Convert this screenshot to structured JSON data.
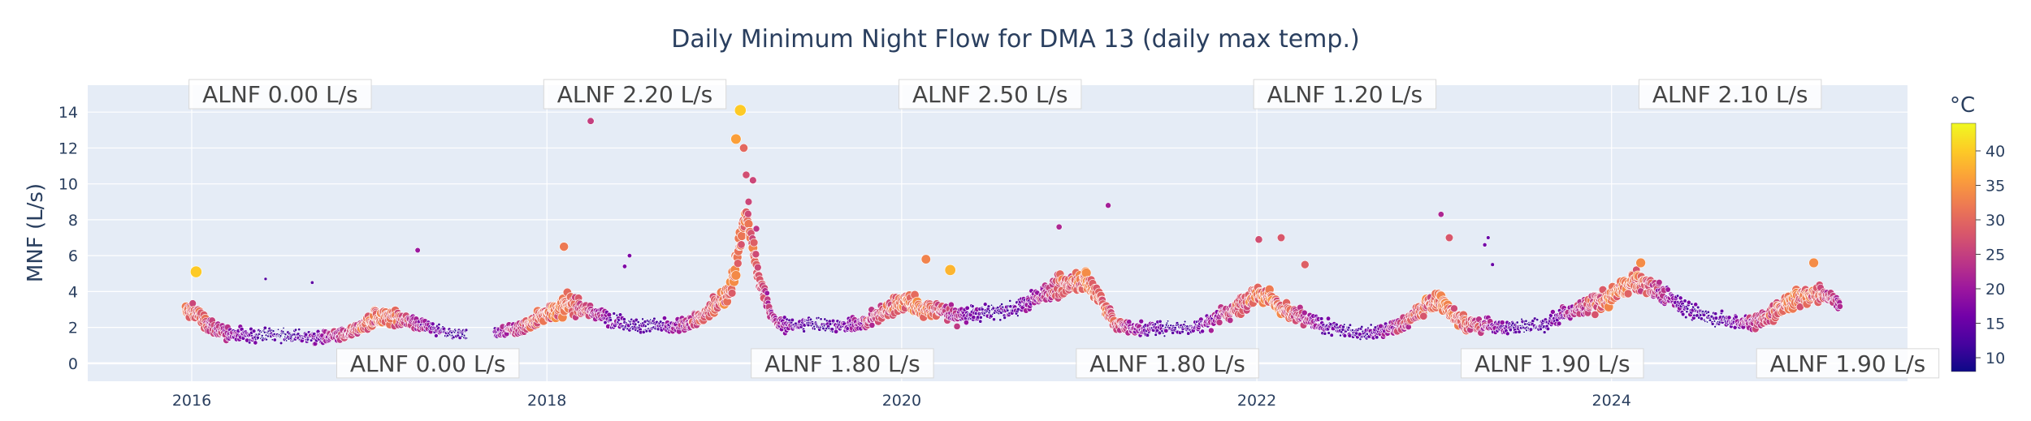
{
  "chart_data": {
    "type": "scatter",
    "title": "Daily Minimum Night Flow for DMA 13 (daily max temp.)",
    "xlabel": "",
    "ylabel": "MNF (L/s)",
    "xlim": [
      "2015-06-01",
      "2025-09-01"
    ],
    "ylim": [
      -1,
      15.5
    ],
    "x_ticks": [
      "2016",
      "2018",
      "2020",
      "2022",
      "2024"
    ],
    "y_ticks": [
      0,
      2,
      4,
      6,
      8,
      10,
      12,
      14
    ],
    "grid": true,
    "colorbar": {
      "title": "°C",
      "range": [
        8,
        44
      ],
      "ticks": [
        10,
        15,
        20,
        25,
        30,
        35,
        40
      ],
      "colorscale": [
        "#0d0887",
        "#46039f",
        "#7201a8",
        "#9c179e",
        "#bd3786",
        "#d8576b",
        "#ed7953",
        "#fb9f3a",
        "#fdca26",
        "#f0f921"
      ]
    },
    "marker_size": "scales with daily max temp.",
    "series": [
      {
        "x": [
          "2015-12-20",
          "2016-01-15",
          "2016-02-15",
          "2016-03-15",
          "2016-04-15",
          "2016-05-15",
          "2016-06-15",
          "2016-07-15",
          "2016-08-15",
          "2016-09-15",
          "2016-10-15",
          "2016-11-15",
          "2016-12-15",
          "2017-01-15",
          "2017-02-15",
          "2017-03-15",
          "2017-04-15",
          "2017-05-15",
          "2017-06-15",
          "2017-07-15",
          "2017-08-15",
          "2017-09-20",
          "2017-10-15",
          "2017-11-15",
          "2017-12-15",
          "2018-01-15",
          "2018-02-15",
          "2018-03-15",
          "2018-04-15",
          "2018-05-15",
          "2018-06-15",
          "2018-07-15",
          "2018-08-15",
          "2018-09-15",
          "2018-10-15",
          "2018-11-15",
          "2018-12-15",
          "2019-01-15",
          "2019-02-15",
          "2019-03-15",
          "2019-04-15",
          "2019-05-15",
          "2019-06-15",
          "2019-07-15",
          "2019-08-15",
          "2019-09-15",
          "2019-10-15",
          "2019-11-15",
          "2019-12-15",
          "2020-01-15",
          "2020-02-15",
          "2020-03-15",
          "2020-04-15",
          "2020-05-15",
          "2020-06-15",
          "2020-07-15",
          "2020-08-15",
          "2020-09-15",
          "2020-10-15",
          "2020-11-15",
          "2020-12-15",
          "2021-01-15",
          "2021-02-15",
          "2021-03-15",
          "2021-04-15",
          "2021-05-15",
          "2021-06-15",
          "2021-07-15",
          "2021-08-15",
          "2021-09-15",
          "2021-10-15",
          "2021-11-15",
          "2021-12-15",
          "2022-01-15",
          "2022-02-15",
          "2022-03-15",
          "2022-04-15",
          "2022-05-15",
          "2022-06-15",
          "2022-07-15",
          "2022-08-15",
          "2022-09-15",
          "2022-10-15",
          "2022-11-15",
          "2022-12-15",
          "2023-01-15",
          "2023-02-15",
          "2023-03-15",
          "2023-04-15",
          "2023-05-15",
          "2023-06-15",
          "2023-07-15",
          "2023-08-15",
          "2023-09-15",
          "2023-10-15",
          "2023-11-15",
          "2023-12-15",
          "2024-01-15",
          "2024-02-15",
          "2024-03-15",
          "2024-04-15",
          "2024-05-15",
          "2024-06-15",
          "2024-07-15",
          "2024-08-15",
          "2024-09-15",
          "2024-10-15",
          "2024-11-15",
          "2024-12-15",
          "2025-01-15",
          "2025-02-15",
          "2025-03-15",
          "2025-04-15"
        ],
        "y": [
          3.0,
          2.7,
          1.9,
          1.7,
          1.6,
          1.5,
          1.6,
          1.5,
          1.5,
          1.4,
          1.5,
          1.6,
          2.0,
          2.6,
          2.6,
          2.4,
          2.2,
          1.9,
          1.7,
          1.6,
          1.6,
          1.7,
          1.8,
          2.0,
          2.6,
          3.0,
          3.3,
          3.0,
          2.7,
          2.4,
          2.2,
          2.1,
          2.1,
          2.0,
          2.2,
          2.6,
          3.2,
          4.2,
          8.5,
          4.5,
          2.3,
          2.1,
          2.2,
          2.2,
          2.1,
          2.1,
          2.3,
          2.7,
          3.2,
          3.5,
          3.0,
          3.0,
          2.7,
          2.7,
          2.8,
          2.9,
          3.0,
          3.4,
          3.8,
          4.2,
          4.5,
          4.7,
          3.5,
          2.2,
          2.0,
          1.9,
          2.0,
          2.0,
          2.0,
          2.2,
          2.6,
          3.0,
          3.6,
          4.0,
          3.2,
          2.7,
          2.4,
          2.1,
          1.9,
          1.8,
          1.7,
          1.8,
          2.0,
          2.5,
          3.2,
          3.5,
          2.6,
          2.2,
          2.1,
          2.0,
          2.0,
          2.1,
          2.2,
          2.6,
          2.9,
          3.2,
          3.5,
          4.0,
          4.6,
          4.4,
          3.8,
          3.4,
          2.9,
          2.6,
          2.4,
          2.3,
          2.3,
          2.6,
          3.1,
          3.6,
          3.9,
          3.8,
          3.3
        ],
        "temp": [
          30,
          28,
          24,
          20,
          16,
          13,
          11,
          11,
          13,
          16,
          20,
          24,
          28,
          30,
          29,
          25,
          20,
          15,
          12,
          11,
          13,
          17,
          22,
          26,
          29,
          31,
          30,
          27,
          21,
          16,
          13,
          12,
          13,
          17,
          22,
          26,
          29,
          31,
          30,
          27,
          21,
          16,
          13,
          12,
          13,
          17,
          22,
          26,
          29,
          31,
          30,
          27,
          21,
          16,
          13,
          12,
          13,
          17,
          22,
          26,
          29,
          31,
          30,
          27,
          21,
          16,
          13,
          12,
          13,
          17,
          22,
          26,
          29,
          31,
          30,
          27,
          21,
          16,
          13,
          12,
          13,
          17,
          22,
          26,
          29,
          31,
          30,
          27,
          21,
          16,
          13,
          12,
          13,
          17,
          22,
          26,
          29,
          31,
          30,
          27,
          21,
          16,
          13,
          12,
          13,
          17,
          22,
          26,
          29,
          31,
          30,
          27,
          21
        ]
      }
    ],
    "outliers": {
      "x": [
        "2016-01-10",
        "2016-06-01",
        "2016-09-05",
        "2017-04-10",
        "2018-02-05",
        "2018-04-01",
        "2018-06-10",
        "2018-06-20",
        "2019-01-25",
        "2019-02-03",
        "2019-02-10",
        "2019-02-15",
        "2019-02-20",
        "2019-03-01",
        "2019-03-08",
        "2020-02-20",
        "2020-04-10",
        "2020-11-20",
        "2021-03-01",
        "2022-01-05",
        "2022-02-20",
        "2022-04-10",
        "2023-01-15",
        "2023-02-01",
        "2023-04-15",
        "2023-04-22",
        "2023-05-01",
        "2024-03-01",
        "2025-02-20"
      ],
      "y": [
        5.1,
        4.7,
        4.5,
        6.3,
        6.5,
        13.5,
        5.4,
        6.0,
        12.5,
        14.1,
        12.0,
        10.5,
        9.0,
        10.2,
        7.5,
        5.8,
        5.2,
        7.6,
        8.8,
        6.9,
        7.0,
        5.5,
        8.3,
        7.0,
        6.6,
        7.0,
        5.5,
        5.6,
        5.6
      ],
      "temp": [
        40,
        13,
        14,
        20,
        32,
        25,
        17,
        17,
        36,
        40,
        30,
        27,
        26,
        26,
        24,
        33,
        38,
        22,
        21,
        27,
        28,
        29,
        22,
        28,
        16,
        15,
        15,
        34,
        34
      ]
    },
    "annotations": [
      {
        "text": "ALNF 0.00 L/s",
        "x": "2016-07-01",
        "y": 15.0
      },
      {
        "text": "ALNF 2.20 L/s",
        "x": "2018-07-01",
        "y": 15.0
      },
      {
        "text": "ALNF 2.50 L/s",
        "x": "2020-07-01",
        "y": 15.0
      },
      {
        "text": "ALNF 1.20 L/s",
        "x": "2022-07-01",
        "y": 15.0
      },
      {
        "text": "ALNF 2.10 L/s",
        "x": "2024-09-01",
        "y": 15.0
      },
      {
        "text": "ALNF 0.00 L/s",
        "x": "2017-05-01",
        "y": 0.0
      },
      {
        "text": "ALNF 1.80 L/s",
        "x": "2019-09-01",
        "y": 0.0
      },
      {
        "text": "ALNF 1.80 L/s",
        "x": "2021-07-01",
        "y": 0.0
      },
      {
        "text": "ALNF 1.90 L/s",
        "x": "2023-09-01",
        "y": 0.0
      },
      {
        "text": "ALNF 1.90 L/s",
        "x": "2025-05-01",
        "y": 0.0
      }
    ]
  }
}
